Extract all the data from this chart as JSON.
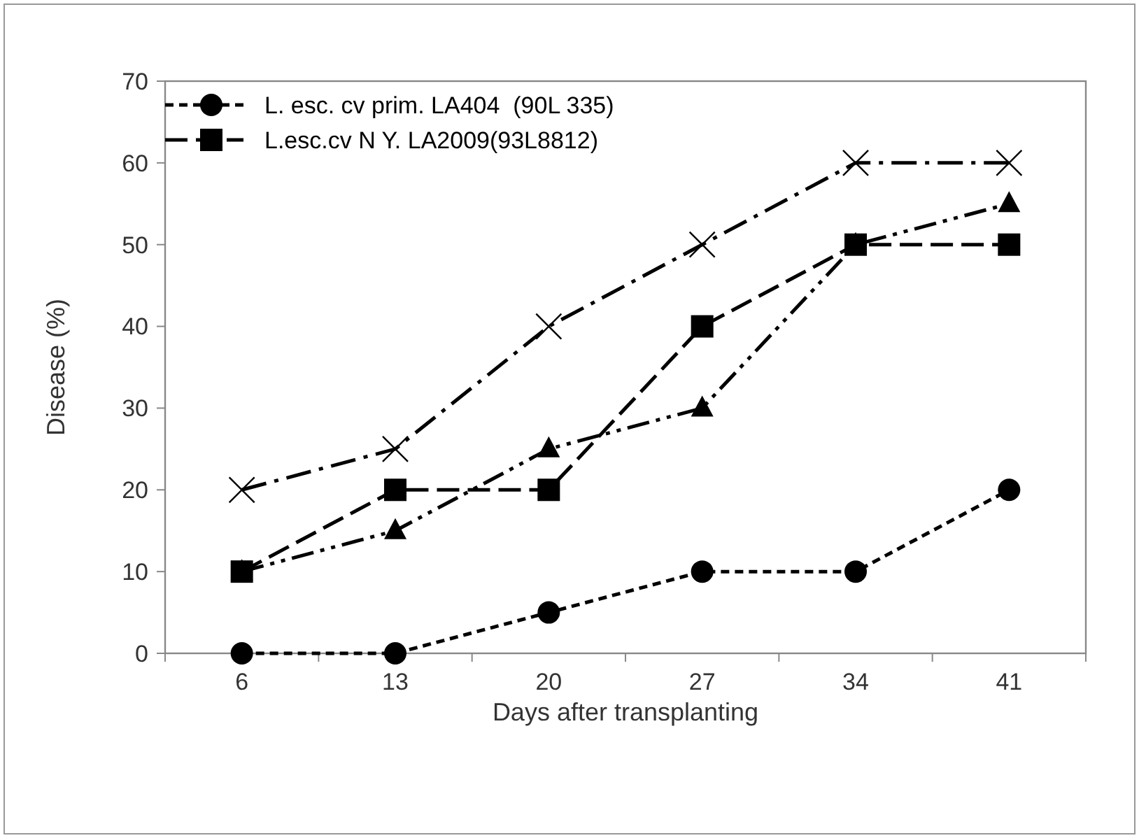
{
  "chart_data": {
    "type": "line",
    "xlabel": "Days after transplanting",
    "ylabel": "Disease (%)",
    "categories": [
      "6",
      "13",
      "20",
      "27",
      "34",
      "41"
    ],
    "ylim": [
      0,
      70
    ],
    "yticks": [
      0,
      10,
      20,
      30,
      40,
      50,
      60,
      70
    ],
    "grid": false,
    "legend": "top left",
    "series": [
      {
        "name": "L. esc. cv prim. LA404  (90L 335)",
        "color": "#000000",
        "marker": "circle",
        "line_style": "dashed",
        "values": [
          0,
          0,
          5,
          10,
          10,
          20
        ]
      },
      {
        "name": "L.esc.cv N Y. LA2009(93L8812)",
        "color": "#000000",
        "marker": "square",
        "line_style": "longdash",
        "values": [
          10,
          20,
          20,
          40,
          50,
          50
        ]
      },
      {
        "color": "#000000",
        "marker": "triangle",
        "line_style": "dashdotdot",
        "values": [
          10,
          15,
          25,
          30,
          50,
          55
        ]
      },
      {
        "color": "#000000",
        "marker": "cross",
        "line_style": "dashdot",
        "values": [
          20,
          25,
          40,
          50,
          60,
          60
        ]
      }
    ]
  }
}
